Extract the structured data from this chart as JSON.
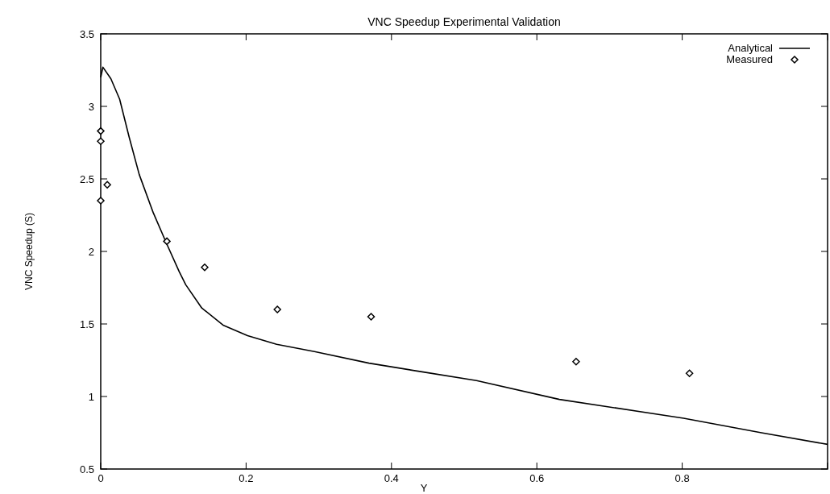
{
  "chart_data": {
    "type": "line",
    "title": "VNC Speedup Experimental Validation",
    "xlabel": "Y",
    "ylabel": "VNC Speedup (S)",
    "xlim": [
      0,
      1
    ],
    "xticks": [
      0,
      0.2,
      0.4,
      0.6,
      0.8,
      {
        "value": 1,
        "label": null
      }
    ],
    "ylim": [
      0.5,
      3.5
    ],
    "yticks": [
      0.5,
      1,
      1.5,
      2,
      2.5,
      3,
      3.5
    ],
    "grid": false,
    "legend": "top right",
    "series": [
      {
        "name": "Analytical",
        "color": "#000000",
        "marker": "none",
        "line_style": "solid",
        "x": [
          0,
          0.003,
          0.014,
          0.026,
          0.039,
          0.053,
          0.072,
          0.091,
          0.108,
          0.117,
          0.139,
          0.169,
          0.202,
          0.242,
          0.294,
          0.369,
          0.442,
          0.517,
          0.631,
          0.802,
          0.909,
          1.0
        ],
        "values": [
          3.2,
          3.27,
          3.19,
          3.05,
          2.79,
          2.53,
          2.27,
          2.05,
          1.86,
          1.77,
          1.61,
          1.49,
          1.42,
          1.36,
          1.31,
          1.23,
          1.17,
          1.11,
          0.98,
          0.85,
          0.75,
          0.67
        ]
      },
      {
        "name": "Measured",
        "type": "scatter",
        "color": "#000000",
        "marker": "diamond",
        "x": [
          0,
          0,
          0,
          0.009,
          0.091,
          0.143,
          0.243,
          0.372,
          0.654,
          0.81
        ],
        "values": [
          2.83,
          2.76,
          2.35,
          2.46,
          2.07,
          1.89,
          1.6,
          1.55,
          1.24,
          1.16
        ]
      }
    ]
  }
}
